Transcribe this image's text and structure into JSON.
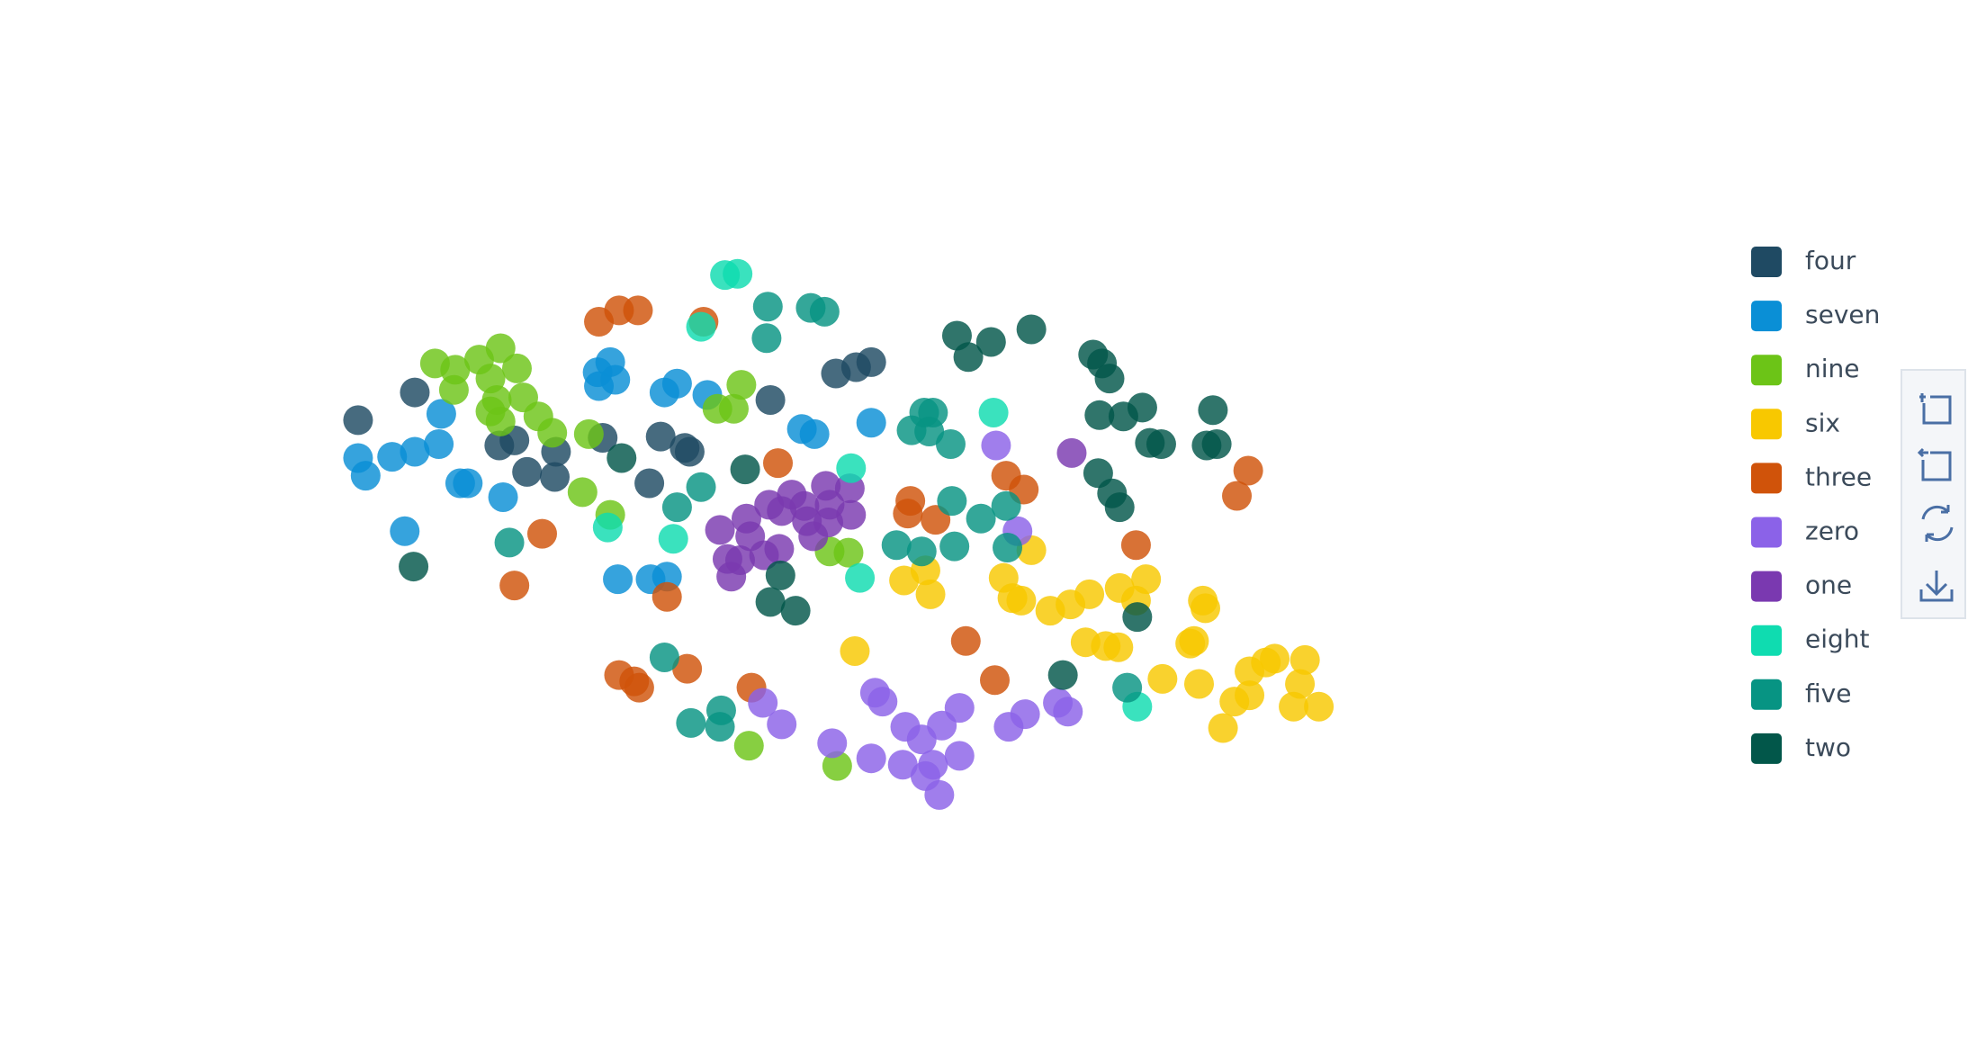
{
  "chart_data": {
    "type": "scatter",
    "xlim": [
      0,
      1568
    ],
    "ylim": [
      838,
      0
    ],
    "series": [
      {
        "name": "four",
        "color": "#1f4a63",
        "x": [
          284,
          329,
          396,
          408,
          441,
          418,
          440,
          478,
          524,
          543,
          547,
          515,
          611,
          663,
          679,
          691
        ],
        "values": [
          333,
          311,
          353,
          349,
          358,
          374,
          378,
          347,
          346,
          355,
          358,
          383,
          317,
          296,
          291,
          287
        ]
      },
      {
        "name": "seven",
        "color": "#0a8fd6",
        "x": [
          284,
          290,
          311,
          329,
          348,
          350,
          365,
          371,
          399,
          321,
          474,
          475,
          484,
          488,
          527,
          537,
          561,
          636,
          646,
          691,
          490,
          516,
          529
        ],
        "values": [
          363,
          377,
          362,
          358,
          352,
          328,
          383,
          383,
          394,
          421,
          295,
          306,
          287,
          301,
          311,
          304,
          313,
          340,
          344,
          335,
          459,
          459,
          457
        ]
      },
      {
        "name": "nine",
        "color": "#6cc417",
        "x": [
          345,
          361,
          360,
          380,
          389,
          397,
          410,
          394,
          389,
          397,
          415,
          427,
          438,
          467,
          462,
          484,
          569,
          582,
          588,
          658,
          673,
          594,
          664
        ],
        "values": [
          288,
          293,
          309,
          285,
          300,
          276,
          292,
          317,
          326,
          334,
          315,
          330,
          343,
          344,
          390,
          408,
          324,
          324,
          305,
          437,
          438,
          591,
          607
        ]
      },
      {
        "name": "six",
        "color": "#f8c800",
        "x": [
          717,
          734,
          738,
          796,
          803,
          810,
          818,
          833,
          849,
          864,
          888,
          901,
          909,
          861,
          877,
          887,
          922,
          944,
          947,
          954,
          956,
          951,
          970,
          979,
          991,
          991,
          1004,
          1011,
          1031,
          1035,
          1026,
          1046,
          678
        ],
        "values": [
          460,
          452,
          471,
          458,
          474,
          476,
          436,
          484,
          479,
          471,
          466,
          476,
          459,
          509,
          512,
          513,
          538,
          510,
          508,
          476,
          482,
          542,
          577,
          556,
          532,
          551,
          525,
          522,
          542,
          523,
          560,
          560,
          516
        ]
      },
      {
        "name": "three",
        "color": "#d0530a",
        "x": [
          475,
          491,
          506,
          558,
          617,
          430,
          408,
          529,
          491,
          503,
          507,
          545,
          596,
          722,
          720,
          742,
          798,
          812,
          901,
          990,
          981,
          766,
          789
        ],
        "values": [
          255,
          246,
          246,
          255,
          367,
          423,
          464,
          473,
          535,
          540,
          545,
          530,
          545,
          397,
          407,
          412,
          377,
          388,
          432,
          373,
          393,
          508,
          539
        ]
      },
      {
        "name": "zero",
        "color": "#8b62e8",
        "x": [
          790,
          807,
          605,
          620,
          660,
          691,
          694,
          700,
          716,
          718,
          731,
          734,
          740,
          745,
          747,
          761,
          761,
          800,
          813,
          839,
          847
        ],
        "values": [
          353,
          421,
          557,
          574,
          589,
          601,
          549,
          556,
          606,
          576,
          586,
          615,
          606,
          630,
          575,
          599,
          561,
          576,
          566,
          557,
          564
        ]
      },
      {
        "name": "one",
        "color": "#7a39b0",
        "x": [
          571,
          577,
          580,
          587,
          592,
          595,
          606,
          610,
          618,
          620,
          628,
          638,
          640,
          645,
          655,
          658,
          657,
          674,
          675,
          850
        ],
        "values": [
          420,
          443,
          457,
          444,
          411,
          425,
          440,
          400,
          435,
          405,
          392,
          401,
          413,
          425,
          385,
          400,
          414,
          387,
          408,
          359
        ]
      },
      {
        "name": "eight",
        "color": "#0fdcb0",
        "x": [
          575,
          585,
          556,
          675,
          682,
          788,
          482,
          534,
          902
        ],
        "values": [
          218,
          217,
          259,
          371,
          458,
          327,
          418,
          427,
          560
        ]
      },
      {
        "name": "five",
        "color": "#079483",
        "x": [
          609,
          643,
          654,
          608,
          556,
          537,
          404,
          527,
          572,
          548,
          571,
          723,
          733,
          740,
          737,
          754,
          755,
          778,
          798,
          799,
          711,
          731,
          757,
          894
        ],
        "values": [
          243,
          244,
          247,
          268,
          386,
          402,
          430,
          521,
          563,
          573,
          576,
          341,
          327,
          327,
          342,
          352,
          397,
          411,
          401,
          434,
          432,
          437,
          433,
          545
        ]
      },
      {
        "name": "two",
        "color": "#02574a",
        "x": [
          328,
          493,
          591,
          619,
          611,
          631,
          759,
          768,
          786,
          818,
          867,
          874,
          880,
          872,
          891,
          906,
          962,
          912,
          921,
          957,
          965,
          871,
          882,
          888,
          843,
          902
        ],
        "values": [
          449,
          363,
          372,
          456,
          477,
          484,
          266,
          283,
          271,
          261,
          281,
          288,
          300,
          329,
          330,
          323,
          325,
          351,
          352,
          353,
          352,
          375,
          391,
          402,
          535,
          489
        ]
      }
    ]
  }
}
